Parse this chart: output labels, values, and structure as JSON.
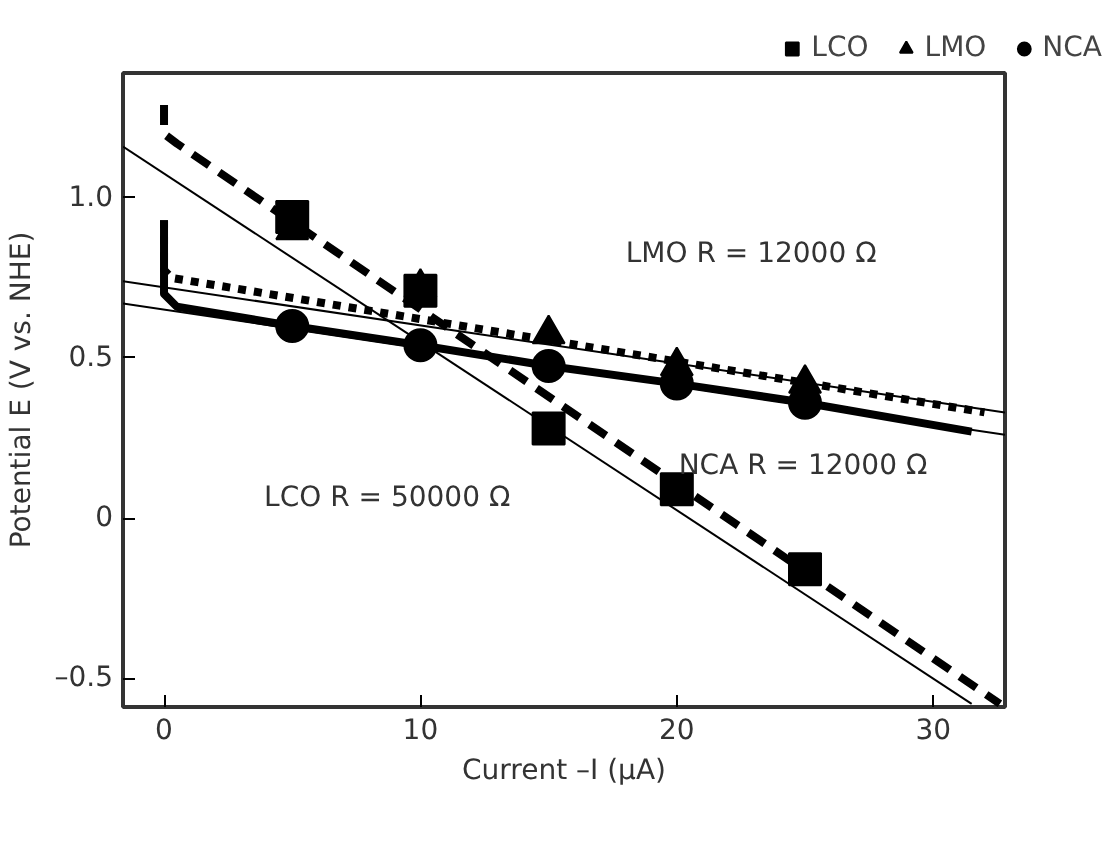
{
  "chart_data": {
    "type": "scatter",
    "xlabel": "Current –I (μA)",
    "ylabel": "Potential E (V vs. NHE)",
    "xlim": [
      -1.6,
      32.8
    ],
    "ylim": [
      -0.59,
      1.39
    ],
    "xticks": [
      0,
      10,
      20,
      30
    ],
    "yticks": [
      {
        "value": -0.5,
        "label": "–0.5"
      },
      0,
      0.5,
      {
        "value": 1.0,
        "label": "1.0"
      }
    ],
    "grid": false,
    "legend": "top right",
    "series": [
      {
        "type": "line",
        "color": "#000000",
        "line_style": "dashed",
        "x": [
          0,
          0,
          0.5,
          32.6
        ],
        "values": [
          1.29,
          1.2,
          1.17,
          -0.58
        ]
      },
      {
        "type": "line",
        "color": "#000000",
        "line_style": "dotted",
        "x": [
          0,
          0,
          0.3,
          32
        ],
        "values": [
          0.93,
          0.775,
          0.75,
          0.33
        ]
      },
      {
        "type": "line",
        "color": "#000000",
        "line_style": "solid",
        "x": [
          0,
          0,
          0.5,
          5,
          10,
          15,
          20,
          25,
          31.5
        ],
        "values": [
          0.93,
          0.7,
          0.66,
          0.6,
          0.54,
          0.475,
          0.42,
          0.36,
          0.27
        ]
      },
      {
        "type": "line",
        "color": "#000000",
        "x": [
          -1.6,
          31.5
        ],
        "values": [
          1.16,
          -0.58
        ]
      },
      {
        "type": "line",
        "color": "#000000",
        "x": [
          -1.6,
          32.8
        ],
        "values": [
          0.74,
          0.33
        ]
      },
      {
        "type": "line",
        "color": "#000000",
        "x": [
          -1.6,
          32.8
        ],
        "values": [
          0.67,
          0.26
        ]
      },
      {
        "name": "LCO",
        "marker": "square",
        "color": "#000000",
        "x": [
          5,
          10,
          15,
          20,
          25
        ],
        "values": [
          0.94,
          0.71,
          0.28,
          0.09,
          -0.16
        ]
      },
      {
        "name": "LMO",
        "marker": "triangle",
        "color": "#000000",
        "x": [
          5,
          10,
          15,
          20,
          25
        ],
        "values": [
          0.9,
          0.72,
          0.575,
          0.475,
          0.42
        ]
      },
      {
        "name": "NCA",
        "marker": "circle",
        "color": "#000000",
        "x": [
          5,
          10,
          15,
          20,
          25
        ],
        "values": [
          0.6,
          0.54,
          0.475,
          0.42,
          0.36
        ]
      }
    ],
    "annotations": [
      "LMO R = 12000 Ω",
      "NCA R = 12000 Ω",
      "LCO R = 50000 Ω"
    ]
  }
}
